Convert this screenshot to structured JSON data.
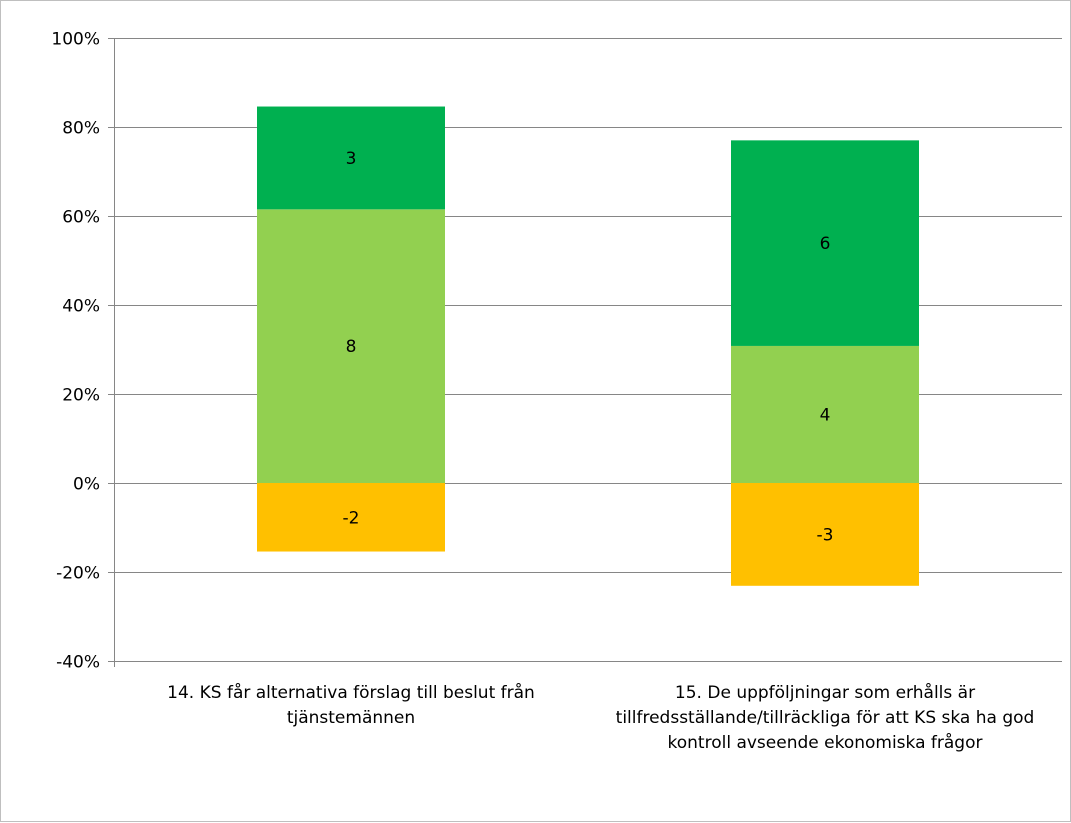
{
  "chart_data": {
    "type": "bar",
    "stacked": true,
    "categories": [
      "14. KS får alternativa förslag till beslut från tjänstemännen",
      "15. De uppföljningar som erhålls är tillfredsställande/tillräckliga för att KS ska ha god kontroll avseende ekonomiska frågor"
    ],
    "series": [
      {
        "color": "#FFC000",
        "values": [
          -15.4,
          -23.1
        ],
        "labels": [
          "-2",
          "-3"
        ]
      },
      {
        "color": "#92D050",
        "values": [
          61.5,
          30.8
        ],
        "labels": [
          "8",
          "4"
        ]
      },
      {
        "color": "#00B050",
        "values": [
          23.1,
          46.2
        ],
        "labels": [
          "3",
          "6"
        ]
      }
    ],
    "ylim": [
      -40,
      100
    ],
    "yticks": [
      -40,
      -20,
      0,
      20,
      40,
      60,
      80,
      100
    ],
    "ytick_labels": [
      "-40%",
      "-20%",
      "0%",
      "20%",
      "40%",
      "60%",
      "80%",
      "100%"
    ],
    "grid": true,
    "legend": "none"
  }
}
